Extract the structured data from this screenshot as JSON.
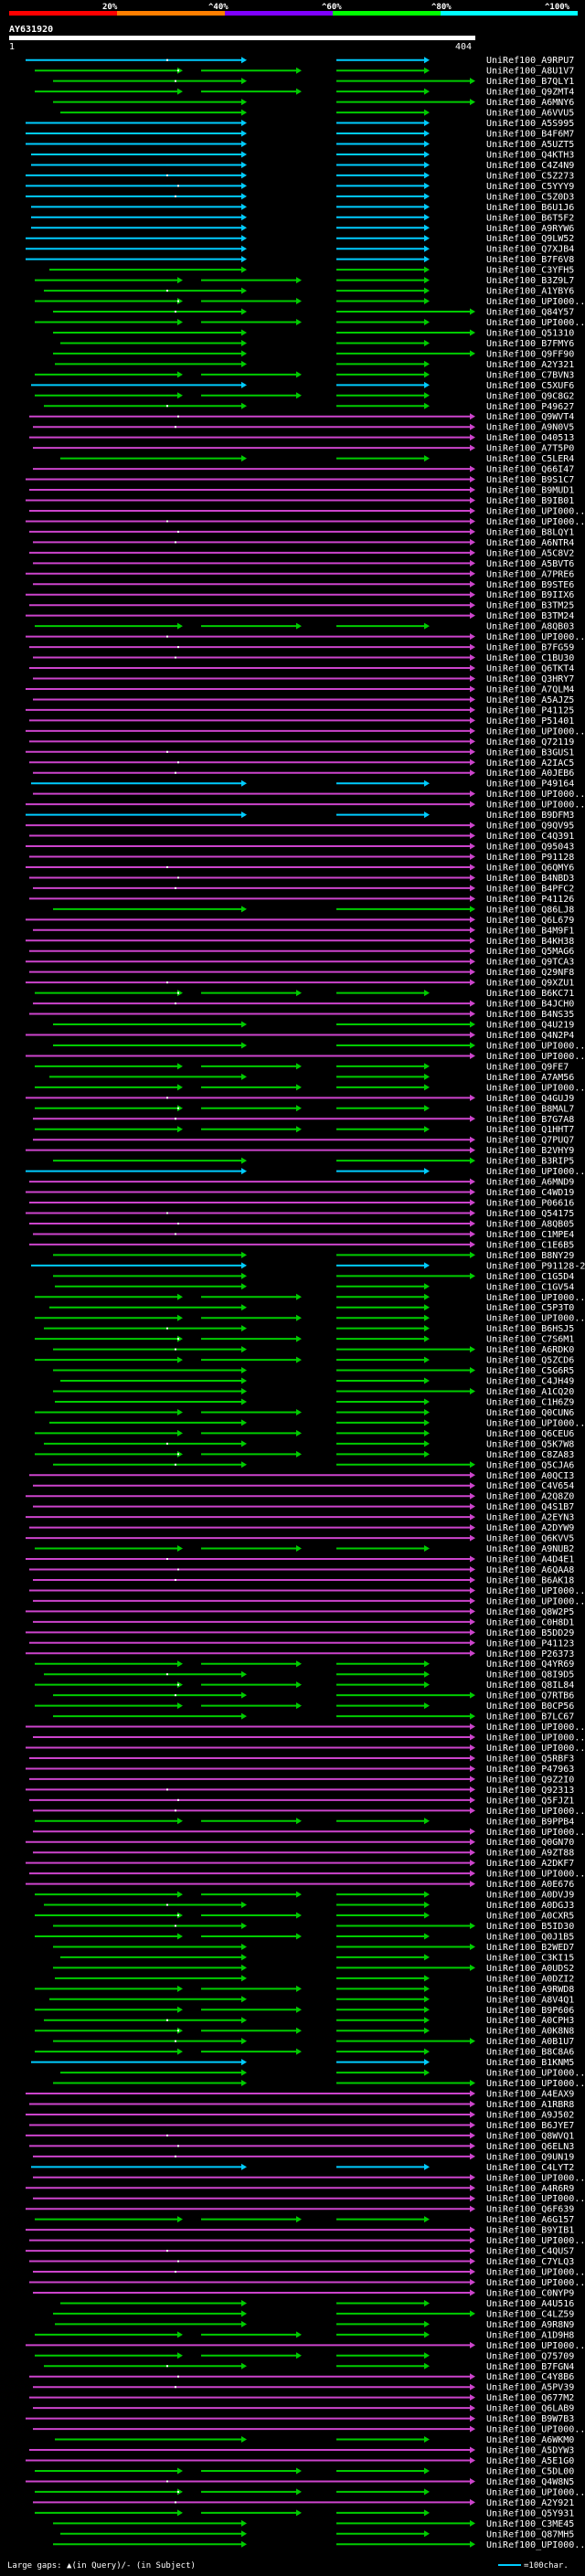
{
  "query": {
    "id": "AY631920",
    "start": "1",
    "end": "404"
  },
  "scale": {
    "labels": [
      "20%",
      "^40%",
      "^60%",
      "^80%",
      "^100%"
    ],
    "colors": [
      "#ff0000",
      "#ff7f00",
      "#7f00ff",
      "#00ff00",
      "#00ffff"
    ]
  },
  "footer": {
    "gaps_text": "Large gaps: ▲(in Query)/- (in Subject)",
    "legend_text": "=100char."
  },
  "colors": {
    "cyan": "#00ccff",
    "green": "#00cc00",
    "magenta": "#cc44cc",
    "background": "#000000",
    "marker": "#ffffff"
  },
  "hits": [
    {
      "label": "UniRef100_A9RPU7",
      "color": "cyan"
    },
    {
      "label": "UniRef100_A8U1V7",
      "color": "green"
    },
    {
      "label": "UniRef100_B7QLY1",
      "color": "green"
    },
    {
      "label": "UniRef100_Q9ZMT4",
      "color": "green"
    },
    {
      "label": "UniRef100_A6MNY6",
      "color": "green"
    },
    {
      "label": "UniRef100_A6VVU5",
      "color": "green"
    },
    {
      "label": "UniRef100_A5S995",
      "color": "cyan"
    },
    {
      "label": "UniRef100_B4F6M7",
      "color": "cyan"
    },
    {
      "label": "UniRef100_A5UZT5",
      "color": "cyan"
    },
    {
      "label": "UniRef100_Q4KTH3",
      "color": "cyan"
    },
    {
      "label": "UniRef100_C4Z4N9",
      "color": "cyan"
    },
    {
      "label": "UniRef100_C5Z273",
      "color": "cyan"
    },
    {
      "label": "UniRef100_C5YYY9",
      "color": "cyan"
    },
    {
      "label": "UniRef100_C5Z0D3",
      "color": "cyan"
    },
    {
      "label": "UniRef100_B6U1J6",
      "color": "cyan"
    },
    {
      "label": "UniRef100_B6T5F2",
      "color": "cyan"
    },
    {
      "label": "UniRef100_A9RYW6",
      "color": "cyan"
    },
    {
      "label": "UniRef100_Q9LW52",
      "color": "cyan"
    },
    {
      "label": "UniRef100_Q7XJB4",
      "color": "cyan"
    },
    {
      "label": "UniRef100_B7F6V8",
      "color": "cyan"
    },
    {
      "label": "UniRef100_C3YFH5",
      "color": "green"
    },
    {
      "label": "UniRef100_B3Z9L7",
      "color": "green"
    },
    {
      "label": "UniRef100_A1YBY6",
      "color": "green"
    },
    {
      "label": "UniRef100_UPI000...",
      "color": "green"
    },
    {
      "label": "UniRef100_Q84Y57",
      "color": "green"
    },
    {
      "label": "UniRef100_UPI000...",
      "color": "green"
    },
    {
      "label": "UniRef100_Q51310",
      "color": "green"
    },
    {
      "label": "UniRef100_B7FMY6",
      "color": "green"
    },
    {
      "label": "UniRef100_Q9FF90",
      "color": "green"
    },
    {
      "label": "UniRef100_A2Y321",
      "color": "green"
    },
    {
      "label": "UniRef100_C7BVN3",
      "color": "green"
    },
    {
      "label": "UniRef100_C5XUF6",
      "color": "cyan"
    },
    {
      "label": "UniRef100_Q9C8G2",
      "color": "green"
    },
    {
      "label": "UniRef100_P49627",
      "color": "green"
    },
    {
      "label": "UniRef100_Q9WVT4",
      "color": "magenta"
    },
    {
      "label": "UniRef100_A9N0V5",
      "color": "magenta"
    },
    {
      "label": "UniRef100_O40513",
      "color": "magenta"
    },
    {
      "label": "UniRef100_A7T5P0",
      "color": "magenta"
    },
    {
      "label": "UniRef100_C5LER4",
      "color": "green"
    },
    {
      "label": "UniRef100_Q66I47",
      "color": "magenta"
    },
    {
      "label": "UniRef100_B9S1C7",
      "color": "magenta"
    },
    {
      "label": "UniRef100_B9MUD1",
      "color": "magenta"
    },
    {
      "label": "UniRef100_B9IB01",
      "color": "magenta"
    },
    {
      "label": "UniRef100_UPI000...",
      "color": "magenta"
    },
    {
      "label": "UniRef100_UPI000...",
      "color": "magenta"
    },
    {
      "label": "UniRef100_B8LQY1",
      "color": "magenta"
    },
    {
      "label": "UniRef100_A6NTR4",
      "color": "magenta"
    },
    {
      "label": "UniRef100_A5C8V2",
      "color": "magenta"
    },
    {
      "label": "UniRef100_A5BVT6",
      "color": "magenta"
    },
    {
      "label": "UniRef100_A7PRE6",
      "color": "magenta"
    },
    {
      "label": "UniRef100_B9STE6",
      "color": "magenta"
    },
    {
      "label": "UniRef100_B9IIX6",
      "color": "magenta"
    },
    {
      "label": "UniRef100_B3TM25",
      "color": "magenta"
    },
    {
      "label": "UniRef100_B3TM24",
      "color": "magenta"
    },
    {
      "label": "UniRef100_A8QB03",
      "color": "green"
    },
    {
      "label": "UniRef100_UPI000...",
      "color": "magenta"
    },
    {
      "label": "UniRef100_B7FG59",
      "color": "magenta"
    },
    {
      "label": "UniRef100_C1BU30",
      "color": "magenta"
    },
    {
      "label": "UniRef100_Q6TKT4",
      "color": "magenta"
    },
    {
      "label": "UniRef100_Q3HRY7",
      "color": "magenta"
    },
    {
      "label": "UniRef100_A7QLM4",
      "color": "magenta"
    },
    {
      "label": "UniRef100_A5AJZ5",
      "color": "magenta"
    },
    {
      "label": "UniRef100_P41125",
      "color": "magenta"
    },
    {
      "label": "UniRef100_P51401",
      "color": "magenta"
    },
    {
      "label": "UniRef100_UPI000...",
      "color": "magenta"
    },
    {
      "label": "UniRef100_Q72119",
      "color": "magenta"
    },
    {
      "label": "UniRef100_B3GUS1",
      "color": "magenta"
    },
    {
      "label": "UniRef100_A2IAC5",
      "color": "magenta"
    },
    {
      "label": "UniRef100_A0JEB6",
      "color": "magenta"
    },
    {
      "label": "UniRef100_P49164",
      "color": "cyan"
    },
    {
      "label": "UniRef100_UPI000...",
      "color": "magenta"
    },
    {
      "label": "UniRef100_UPI000...",
      "color": "magenta"
    },
    {
      "label": "UniRef100_B9DFM3",
      "color": "cyan"
    },
    {
      "label": "UniRef100_Q9QV95",
      "color": "magenta"
    },
    {
      "label": "UniRef100_C4Q391",
      "color": "magenta"
    },
    {
      "label": "UniRef100_Q95043",
      "color": "magenta"
    },
    {
      "label": "UniRef100_P91128",
      "color": "magenta"
    },
    {
      "label": "UniRef100_Q6QMY6",
      "color": "magenta"
    },
    {
      "label": "UniRef100_B4NBD3",
      "color": "magenta"
    },
    {
      "label": "UniRef100_B4PFC2",
      "color": "magenta"
    },
    {
      "label": "UniRef100_P41126",
      "color": "magenta"
    },
    {
      "label": "UniRef100_Q86LJ8",
      "color": "green"
    },
    {
      "label": "UniRef100_Q6L679",
      "color": "magenta"
    },
    {
      "label": "UniRef100_B4M9F1",
      "color": "magenta"
    },
    {
      "label": "UniRef100_B4KH38",
      "color": "magenta"
    },
    {
      "label": "UniRef100_Q5MAG6",
      "color": "magenta"
    },
    {
      "label": "UniRef100_Q9TCA3",
      "color": "magenta"
    },
    {
      "label": "UniRef100_Q29NF8",
      "color": "magenta"
    },
    {
      "label": "UniRef100_Q9XZU1",
      "color": "magenta"
    },
    {
      "label": "UniRef100_B6KC71",
      "color": "green"
    },
    {
      "label": "UniRef100_B4JCH0",
      "color": "magenta"
    },
    {
      "label": "UniRef100_B4NS35",
      "color": "magenta"
    },
    {
      "label": "UniRef100_Q4U219",
      "color": "green"
    },
    {
      "label": "UniRef100_Q4N2P4",
      "color": "magenta"
    },
    {
      "label": "UniRef100_UPI000...",
      "color": "green"
    },
    {
      "label": "UniRef100_UPI000...",
      "color": "magenta"
    },
    {
      "label": "UniRef100_Q9FE7",
      "color": "green"
    },
    {
      "label": "UniRef100_A7AM56",
      "color": "green"
    },
    {
      "label": "UniRef100_UPI000...",
      "color": "green"
    },
    {
      "label": "UniRef100_Q4GUJ9",
      "color": "magenta"
    },
    {
      "label": "UniRef100_B8MAL7",
      "color": "green"
    },
    {
      "label": "UniRef100_B7G7A8",
      "color": "magenta"
    },
    {
      "label": "UniRef100_Q1HHT7",
      "color": "green"
    },
    {
      "label": "UniRef100_Q7PUQ7",
      "color": "magenta"
    },
    {
      "label": "UniRef100_B2VHY9",
      "color": "magenta"
    },
    {
      "label": "UniRef100_B3RIP5",
      "color": "green"
    },
    {
      "label": "UniRef100_UPI000...",
      "color": "cyan"
    },
    {
      "label": "UniRef100_A6MND9",
      "color": "magenta"
    },
    {
      "label": "UniRef100_C4WD19",
      "color": "magenta"
    },
    {
      "label": "UniRef100_P06616",
      "color": "magenta"
    },
    {
      "label": "UniRef100_Q54175",
      "color": "magenta"
    },
    {
      "label": "UniRef100_A8QB05",
      "color": "magenta"
    },
    {
      "label": "UniRef100_C1MPE4",
      "color": "magenta"
    },
    {
      "label": "UniRef100_C1E6B5",
      "color": "magenta"
    },
    {
      "label": "UniRef100_B8NY29",
      "color": "green"
    },
    {
      "label": "UniRef100_P91128-2",
      "color": "cyan"
    },
    {
      "label": "UniRef100_C1G5D4",
      "color": "green"
    },
    {
      "label": "UniRef100_C1GV54",
      "color": "green"
    },
    {
      "label": "UniRef100_UPI000...",
      "color": "green"
    },
    {
      "label": "UniRef100_C5P3T0",
      "color": "green"
    },
    {
      "label": "UniRef100_UPI000...",
      "color": "green"
    },
    {
      "label": "UniRef100_B6HSJ5",
      "color": "green"
    },
    {
      "label": "UniRef100_C7S6M1",
      "color": "green"
    },
    {
      "label": "UniRef100_A6RDK0",
      "color": "green"
    },
    {
      "label": "UniRef100_Q5ZCD6",
      "color": "green"
    },
    {
      "label": "UniRef100_C5G6R5",
      "color": "green"
    },
    {
      "label": "UniRef100_C4JH49",
      "color": "green"
    },
    {
      "label": "UniRef100_A1CQ20",
      "color": "green"
    },
    {
      "label": "UniRef100_C1H6Z9",
      "color": "green"
    },
    {
      "label": "UniRef100_Q0CUN6",
      "color": "green"
    },
    {
      "label": "UniRef100_UPI000...",
      "color": "green"
    },
    {
      "label": "UniRef100_Q6CEU6",
      "color": "green"
    },
    {
      "label": "UniRef100_Q5K7W8",
      "color": "green"
    },
    {
      "label": "UniRef100_C8ZA83",
      "color": "green"
    },
    {
      "label": "UniRef100_Q5CJA6",
      "color": "green"
    },
    {
      "label": "UniRef100_A0QCI3",
      "color": "magenta"
    },
    {
      "label": "UniRef100_C4V654",
      "color": "magenta"
    },
    {
      "label": "UniRef100_A2Q8Z0",
      "color": "magenta"
    },
    {
      "label": "UniRef100_Q4S1B7",
      "color": "magenta"
    },
    {
      "label": "UniRef100_A2EYN3",
      "color": "magenta"
    },
    {
      "label": "UniRef100_A2DYW9",
      "color": "magenta"
    },
    {
      "label": "UniRef100_Q6KVV5",
      "color": "magenta"
    },
    {
      "label": "UniRef100_A9NUB2",
      "color": "green"
    },
    {
      "label": "UniRef100_A4D4E1",
      "color": "magenta"
    },
    {
      "label": "UniRef100_A6QAA8",
      "color": "magenta"
    },
    {
      "label": "UniRef100_B6AK18",
      "color": "magenta"
    },
    {
      "label": "UniRef100_UPI000...",
      "color": "magenta"
    },
    {
      "label": "UniRef100_UPI000...",
      "color": "magenta"
    },
    {
      "label": "UniRef100_Q8W2P5",
      "color": "magenta"
    },
    {
      "label": "UniRef100_C0H8D1",
      "color": "magenta"
    },
    {
      "label": "UniRef100_B5DD29",
      "color": "magenta"
    },
    {
      "label": "UniRef100_P41123",
      "color": "magenta"
    },
    {
      "label": "UniRef100_P26373",
      "color": "magenta"
    },
    {
      "label": "UniRef100_Q4YR69",
      "color": "green"
    },
    {
      "label": "UniRef100_Q8I9D5",
      "color": "green"
    },
    {
      "label": "UniRef100_Q8IL84",
      "color": "green"
    },
    {
      "label": "UniRef100_Q7RTB6",
      "color": "green"
    },
    {
      "label": "UniRef100_B0CP56",
      "color": "green"
    },
    {
      "label": "UniRef100_B7LC67",
      "color": "green"
    },
    {
      "label": "UniRef100_UPI000...",
      "color": "magenta"
    },
    {
      "label": "UniRef100_UPI000...",
      "color": "magenta"
    },
    {
      "label": "UniRef100_UPI000...",
      "color": "magenta"
    },
    {
      "label": "UniRef100_Q5RBF3",
      "color": "magenta"
    },
    {
      "label": "UniRef100_P47963",
      "color": "magenta"
    },
    {
      "label": "UniRef100_Q9Z2I0",
      "color": "magenta"
    },
    {
      "label": "UniRef100_Q92313",
      "color": "magenta"
    },
    {
      "label": "UniRef100_Q5FJZ1",
      "color": "magenta"
    },
    {
      "label": "UniRef100_UPI000...",
      "color": "magenta"
    },
    {
      "label": "UniRef100_B9PPB4",
      "color": "green"
    },
    {
      "label": "UniRef100_UPI000...",
      "color": "magenta"
    },
    {
      "label": "UniRef100_Q0GN70",
      "color": "magenta"
    },
    {
      "label": "UniRef100_A9ZT88",
      "color": "magenta"
    },
    {
      "label": "UniRef100_A2DKF7",
      "color": "magenta"
    },
    {
      "label": "UniRef100_UPI000...",
      "color": "magenta"
    },
    {
      "label": "UniRef100_A0E676",
      "color": "magenta"
    },
    {
      "label": "UniRef100_A0DVJ9",
      "color": "green"
    },
    {
      "label": "UniRef100_A0DGJ3",
      "color": "green"
    },
    {
      "label": "UniRef100_A0CXR5",
      "color": "green"
    },
    {
      "label": "UniRef100_B5ID30",
      "color": "green"
    },
    {
      "label": "UniRef100_Q0J1B5",
      "color": "green"
    },
    {
      "label": "UniRef100_B2WED7",
      "color": "green"
    },
    {
      "label": "UniRef100_C3KI15",
      "color": "green"
    },
    {
      "label": "UniRef100_A0UDS2",
      "color": "green"
    },
    {
      "label": "UniRef100_A0DZI2",
      "color": "green"
    },
    {
      "label": "UniRef100_A9RWD8",
      "color": "green"
    },
    {
      "label": "UniRef100_A8V4Q1",
      "color": "green"
    },
    {
      "label": "UniRef100_B9P606",
      "color": "green"
    },
    {
      "label": "UniRef100_A0CPH3",
      "color": "green"
    },
    {
      "label": "UniRef100_A0K8N8",
      "color": "green"
    },
    {
      "label": "UniRef100_A0B1U7",
      "color": "green"
    },
    {
      "label": "UniRef100_B8C8A6",
      "color": "green"
    },
    {
      "label": "UniRef100_B1KNM5",
      "color": "cyan"
    },
    {
      "label": "UniRef100_UPI000...",
      "color": "green"
    },
    {
      "label": "UniRef100_UPI000...",
      "color": "green"
    },
    {
      "label": "UniRef100_A4EAX9",
      "color": "magenta"
    },
    {
      "label": "UniRef100_A1RBR8",
      "color": "magenta"
    },
    {
      "label": "UniRef100_A9J502",
      "color": "magenta"
    },
    {
      "label": "UniRef100_B6JYE7",
      "color": "magenta"
    },
    {
      "label": "UniRef100_Q8WVQ1",
      "color": "magenta"
    },
    {
      "label": "UniRef100_Q6ELN3",
      "color": "magenta"
    },
    {
      "label": "UniRef100_Q9UN19",
      "color": "magenta"
    },
    {
      "label": "UniRef100_C4LYT2",
      "color": "cyan"
    },
    {
      "label": "UniRef100_UPI000...",
      "color": "magenta"
    },
    {
      "label": "UniRef100_A4R6R9",
      "color": "magenta"
    },
    {
      "label": "UniRef100_UPI000...",
      "color": "magenta"
    },
    {
      "label": "UniRef100_Q6F639",
      "color": "magenta"
    },
    {
      "label": "UniRef100_A6G157",
      "color": "green"
    },
    {
      "label": "UniRef100_B9YIB1",
      "color": "magenta"
    },
    {
      "label": "UniRef100_UPI000...",
      "color": "magenta"
    },
    {
      "label": "UniRef100_C4QUS7",
      "color": "magenta"
    },
    {
      "label": "UniRef100_C7YLQ3",
      "color": "magenta"
    },
    {
      "label": "UniRef100_UPI000...",
      "color": "magenta"
    },
    {
      "label": "UniRef100_UPI000...",
      "color": "magenta"
    },
    {
      "label": "UniRef100_C0NYP9",
      "color": "magenta"
    },
    {
      "label": "UniRef100_A4U516",
      "color": "green"
    },
    {
      "label": "UniRef100_C4LZ59",
      "color": "green"
    },
    {
      "label": "UniRef100_A9R8N9",
      "color": "green"
    },
    {
      "label": "UniRef100_A1D9H8",
      "color": "green"
    },
    {
      "label": "UniRef100_UPI000...",
      "color": "magenta"
    },
    {
      "label": "UniRef100_Q75709",
      "color": "green"
    },
    {
      "label": "UniRef100_B7FGN4",
      "color": "green"
    },
    {
      "label": "UniRef100_C4Y8B6",
      "color": "magenta"
    },
    {
      "label": "UniRef100_A5PV39",
      "color": "magenta"
    },
    {
      "label": "UniRef100_Q677M2",
      "color": "magenta"
    },
    {
      "label": "UniRef100_Q6LAB9",
      "color": "magenta"
    },
    {
      "label": "UniRef100_B9W7B3",
      "color": "magenta"
    },
    {
      "label": "UniRef100_UPI000...",
      "color": "magenta"
    },
    {
      "label": "UniRef100_A6WKM0",
      "color": "green"
    },
    {
      "label": "UniRef100_A5DYW3",
      "color": "magenta"
    },
    {
      "label": "UniRef100_A5E1G0",
      "color": "magenta"
    },
    {
      "label": "UniRef100_C5DL00",
      "color": "green"
    },
    {
      "label": "UniRef100_Q4W8N5",
      "color": "magenta"
    },
    {
      "label": "UniRef100_UPI000...",
      "color": "green"
    },
    {
      "label": "UniRef100_A2Y921",
      "color": "magenta"
    },
    {
      "label": "UniRef100_Q5Y931",
      "color": "green"
    },
    {
      "label": "UniRef100_C3ME45",
      "color": "green"
    },
    {
      "label": "UniRef100_Q87MH5",
      "color": "green"
    },
    {
      "label": "UniRef100_UPI000...",
      "color": "green"
    }
  ]
}
